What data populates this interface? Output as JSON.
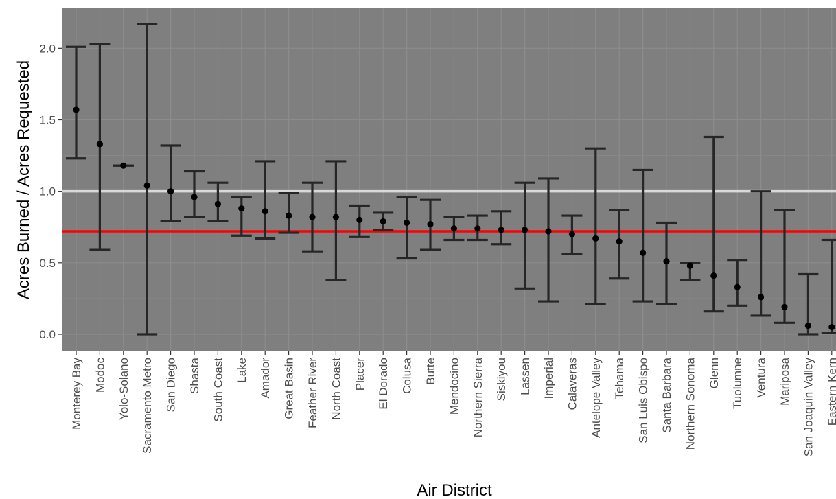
{
  "chart_data": {
    "type": "scatter",
    "title": "",
    "xlabel": "Air District",
    "ylabel": "Acres Burned / Acres Requested",
    "ylim": [
      -0.12,
      2.28
    ],
    "yticks": [
      0.0,
      0.5,
      1.0,
      1.5,
      2.0
    ],
    "ytick_labels": [
      "0.0",
      "0.5",
      "1.0",
      "1.5",
      "2.0"
    ],
    "grid": true,
    "legend": "none",
    "reference_lines": [
      {
        "y": 1.0,
        "color": "#d9d9d9"
      },
      {
        "y": 0.72,
        "color": "#ff0000"
      }
    ],
    "colors": {
      "panel_background": "#7f7f7f",
      "grid": "#8c8c8c",
      "point": "#000000",
      "errorbar": "#262626"
    },
    "categories": [
      "Monterey Bay",
      "Modoc",
      "Yolo-Solano",
      "Sacramento Metro",
      "San Diego",
      "Shasta",
      "South Coast",
      "Lake",
      "Amador",
      "Great Basin",
      "Feather River",
      "North Coast",
      "Placer",
      "El Dorado",
      "Colusa",
      "Butte",
      "Mendocino",
      "Northern Sierra",
      "Siskiyou",
      "Lassen",
      "Imperial",
      "Calaveras",
      "Antelope Valley",
      "Tehama",
      "San Luis Obispo",
      "Santa Barbara",
      "Northern Sonoma",
      "Glenn",
      "Tuolumne",
      "Ventura",
      "Mariposa",
      "San Joaquin Valley",
      "Eastern Kern"
    ],
    "values": [
      1.57,
      1.33,
      1.18,
      1.04,
      1.0,
      0.96,
      0.91,
      0.88,
      0.86,
      0.83,
      0.82,
      0.82,
      0.8,
      0.79,
      0.78,
      0.77,
      0.74,
      0.74,
      0.73,
      0.73,
      0.72,
      0.7,
      0.67,
      0.65,
      0.57,
      0.51,
      0.48,
      0.41,
      0.33,
      0.26,
      0.19,
      0.06,
      0.05
    ],
    "lower": [
      1.23,
      0.59,
      1.18,
      0.0,
      0.79,
      0.82,
      0.79,
      0.69,
      0.67,
      0.71,
      0.58,
      0.38,
      0.68,
      0.73,
      0.53,
      0.59,
      0.66,
      0.66,
      0.63,
      0.32,
      0.23,
      0.56,
      0.21,
      0.39,
      0.23,
      0.21,
      0.38,
      0.16,
      0.2,
      0.13,
      0.08,
      0.0,
      0.01
    ],
    "upper": [
      2.01,
      2.03,
      1.18,
      2.17,
      1.32,
      1.14,
      1.06,
      0.96,
      1.21,
      0.99,
      1.06,
      1.21,
      0.9,
      0.85,
      0.96,
      0.94,
      0.82,
      0.83,
      0.86,
      1.06,
      1.09,
      0.83,
      1.3,
      0.87,
      1.15,
      0.78,
      0.5,
      1.38,
      0.52,
      1.0,
      0.87,
      0.42,
      0.66
    ]
  }
}
